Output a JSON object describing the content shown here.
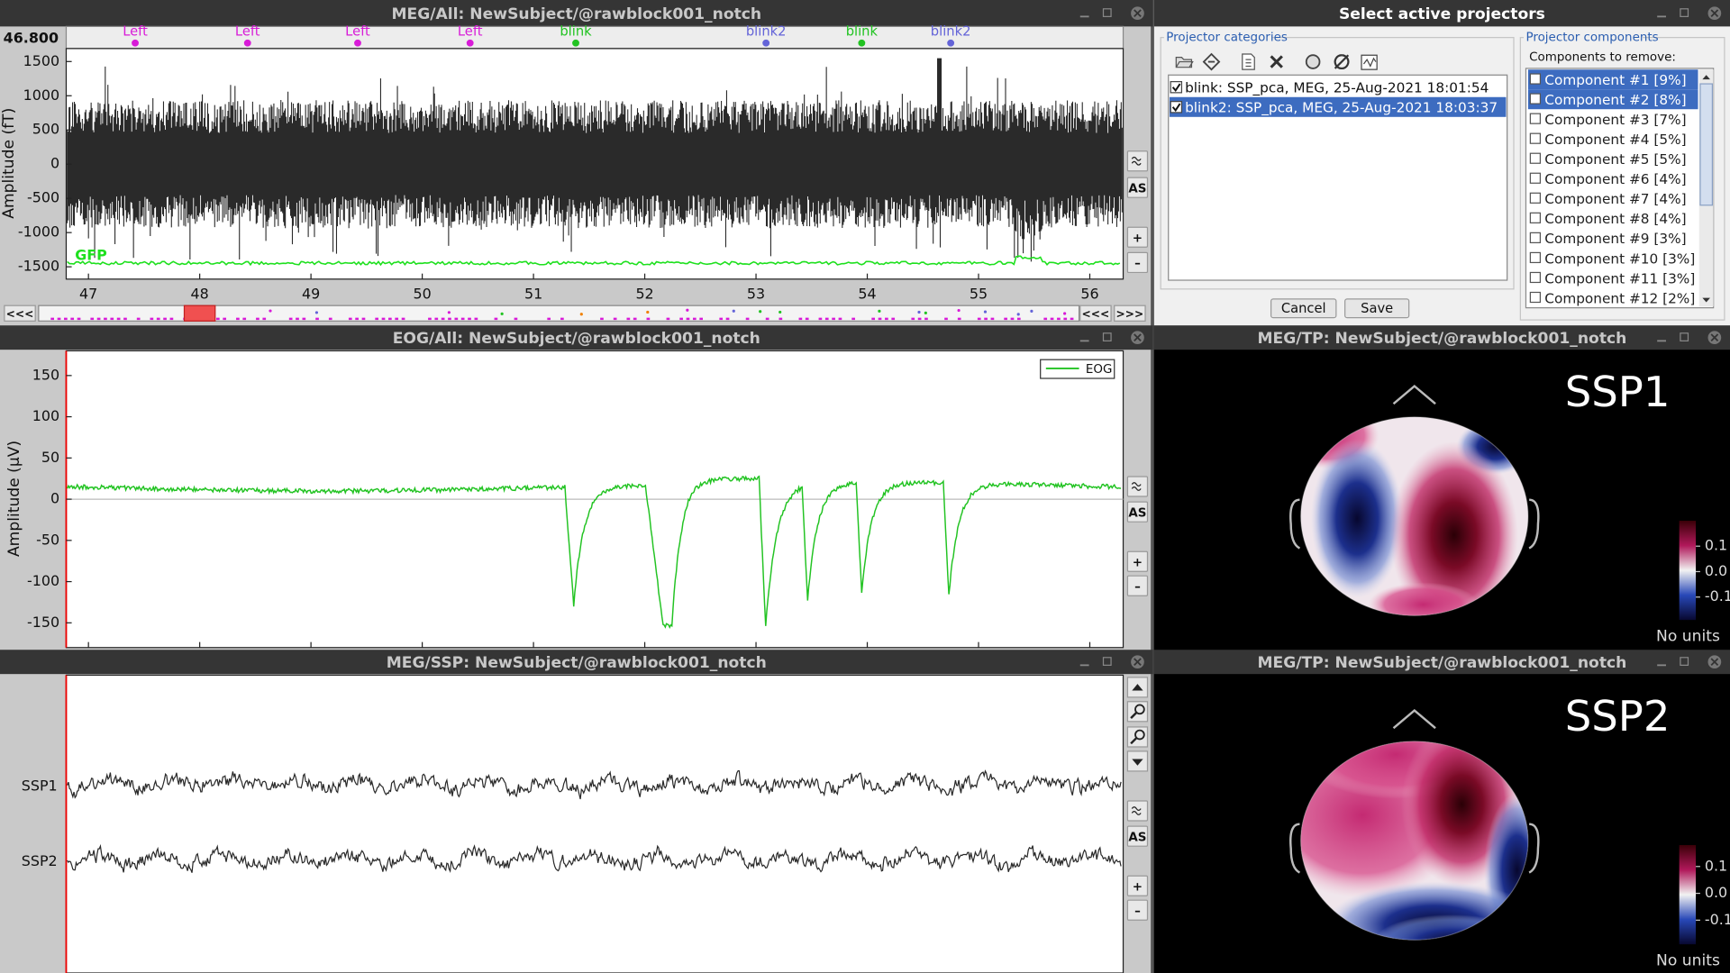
{
  "meg_all": {
    "title": "MEG/All: NewSubject/@rawblock001_notch",
    "time_display": "46.800",
    "ylabel": "Amplitude (fT)",
    "xlim": [
      46.8,
      56.3
    ],
    "ylim": [
      -1680,
      1690
    ],
    "xticks": [
      47,
      48,
      49,
      50,
      51,
      52,
      53,
      54,
      55,
      56
    ],
    "yticks": [
      -1500,
      -1000,
      -500,
      0,
      500,
      1000,
      1500
    ],
    "events": [
      {
        "label": "Left",
        "time": 47.42,
        "color": "#d81bd8"
      },
      {
        "label": "Left",
        "time": 48.43,
        "color": "#d81bd8"
      },
      {
        "label": "Left",
        "time": 49.42,
        "color": "#d81bd8"
      },
      {
        "label": "Left",
        "time": 50.43,
        "color": "#d81bd8"
      },
      {
        "label": "blink",
        "time": 51.38,
        "color": "#22c322"
      },
      {
        "label": "blink2",
        "time": 53.09,
        "color": "#6464d8"
      },
      {
        "label": "blink",
        "time": 53.95,
        "color": "#22c322"
      },
      {
        "label": "blink2",
        "time": 54.75,
        "color": "#6464d8"
      }
    ],
    "gfp_label": "GFP",
    "nav_buttons": [
      "<<<",
      "<<<",
      ">>>"
    ],
    "side_buttons": [
      "AS",
      "+",
      "–"
    ]
  },
  "eog_all": {
    "title": "EOG/All: NewSubject/@rawblock001_notch",
    "ylabel": "Amplitude (μV)",
    "xlim": [
      46.8,
      56.3
    ],
    "ylim": [
      -180,
      180
    ],
    "xticks": [
      47,
      48,
      49,
      50,
      51,
      52,
      53,
      54,
      55,
      56
    ],
    "yticks": [
      -150,
      -100,
      -50,
      0,
      50,
      100,
      150
    ],
    "legend": "EOG",
    "side_buttons": [
      "AS",
      "+",
      "–"
    ]
  },
  "meg_ssp": {
    "title": "MEG/SSP: NewSubject/@rawblock001_notch",
    "channels": [
      "SSP1",
      "SSP2"
    ],
    "side_buttons": [
      "AS",
      "+",
      "–"
    ]
  },
  "topo_1": {
    "title": "MEG/TP: NewSubject/@rawblock001_notch",
    "label": "SSP1",
    "colorbar_lim": [
      -0.19,
      0.2
    ],
    "colorbar_ticks": [
      0.1,
      {
        "value": 0,
        "label": "0.0"
      },
      -0.1
    ],
    "units": "No units"
  },
  "topo_2": {
    "title": "MEG/TP: NewSubject/@rawblock001_notch",
    "label": "SSP2",
    "colorbar_lim": [
      -0.19,
      0.18
    ],
    "colorbar_ticks": [
      0.1,
      {
        "value": 0,
        "label": "0.0"
      },
      -0.1
    ],
    "units": "No units"
  },
  "dialog": {
    "title": "Select active projectors",
    "categories_title": "Projector categories",
    "categories": [
      {
        "label": "blink: SSP_pca, MEG, 25-Aug-2021 18:01:54",
        "checked": true,
        "selected": false
      },
      {
        "label": "blink2: SSP_pca, MEG, 25-Aug-2021 18:03:37",
        "checked": true,
        "selected": true
      }
    ],
    "components_title": "Projector components",
    "components_label": "Components to remove:",
    "components": [
      {
        "label": "Component #1 [9%]",
        "checked": false,
        "selected": true
      },
      {
        "label": "Component #2 [8%]",
        "checked": false,
        "selected": true
      },
      {
        "label": "Component #3 [7%]",
        "checked": false,
        "selected": false
      },
      {
        "label": "Component #4 [5%]",
        "checked": false,
        "selected": false
      },
      {
        "label": "Component #5 [5%]",
        "checked": false,
        "selected": false
      },
      {
        "label": "Component #6 [4%]",
        "checked": false,
        "selected": false
      },
      {
        "label": "Component #7 [4%]",
        "checked": false,
        "selected": false
      },
      {
        "label": "Component #8 [4%]",
        "checked": false,
        "selected": false
      },
      {
        "label": "Component #9 [3%]",
        "checked": false,
        "selected": false
      },
      {
        "label": "Component #10 [3%]",
        "checked": false,
        "selected": false
      },
      {
        "label": "Component #11 [3%]",
        "checked": false,
        "selected": false
      },
      {
        "label": "Component #12 [2%]",
        "checked": false,
        "selected": false
      }
    ],
    "buttons": [
      "Cancel",
      "Save"
    ]
  }
}
